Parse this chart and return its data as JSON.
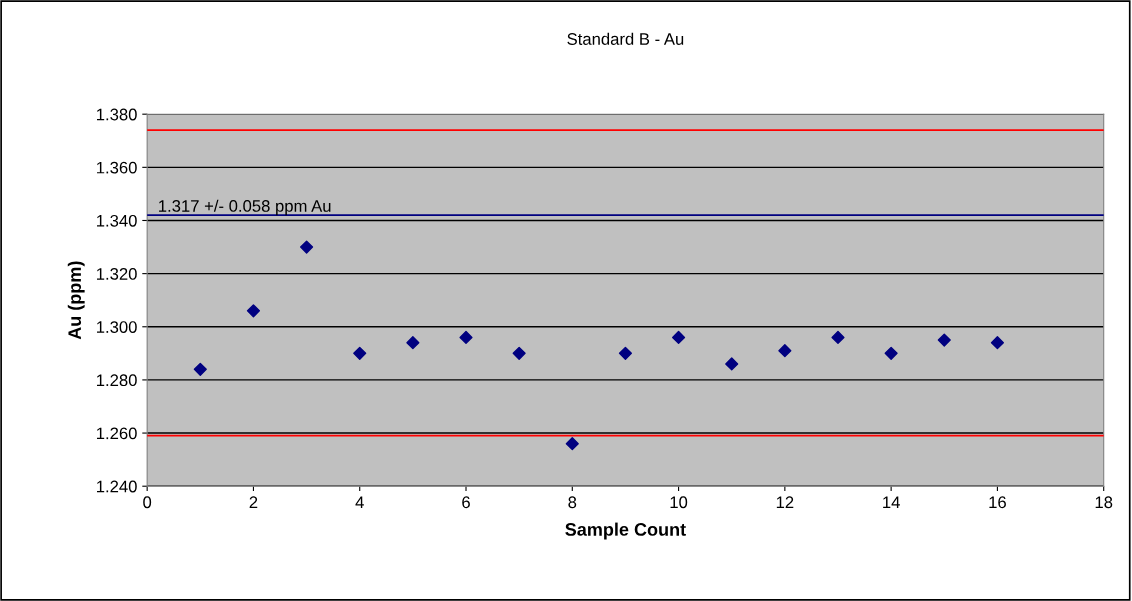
{
  "chart_data": {
    "type": "scatter",
    "title": "Standard B - Au",
    "xlabel": "Sample Count",
    "ylabel": "Au (ppm)",
    "x": [
      1,
      2,
      3,
      4,
      5,
      6,
      7,
      8,
      9,
      10,
      11,
      12,
      13,
      14,
      15,
      16
    ],
    "series": [
      {
        "color": "#000080",
        "values": [
          1.284,
          1.306,
          1.33,
          1.29,
          1.294,
          1.296,
          1.29,
          1.256,
          1.29,
          1.296,
          1.286,
          1.291,
          1.296,
          1.29,
          1.295,
          1.294
        ]
      }
    ],
    "marker": "diamond",
    "grid": "y",
    "legend": false,
    "xlim": [
      0,
      18
    ],
    "xticks": [
      0,
      2,
      4,
      6,
      8,
      10,
      12,
      14,
      16,
      18
    ],
    "ylim": [
      1.24,
      1.38
    ],
    "yticks": [
      {
        "value": 1.24,
        "label": "1.240"
      },
      {
        "value": 1.26,
        "label": "1.260"
      },
      {
        "value": 1.28,
        "label": "1.280"
      },
      {
        "value": 1.3,
        "label": "1.300"
      },
      {
        "value": 1.32,
        "label": "1.320"
      },
      {
        "value": 1.34,
        "label": "1.340"
      },
      {
        "value": 1.36,
        "label": "1.360"
      },
      {
        "value": 1.38,
        "label": "1.380"
      }
    ],
    "ref_lines": [
      {
        "axis": "y",
        "value": 1.374,
        "color": "#ff0000"
      },
      {
        "axis": "y",
        "value": 1.342,
        "color": "#000080",
        "label": "1.317 +/- 0.058 ppm Au"
      },
      {
        "axis": "y",
        "value": 1.259,
        "color": "#ff0000"
      }
    ]
  }
}
